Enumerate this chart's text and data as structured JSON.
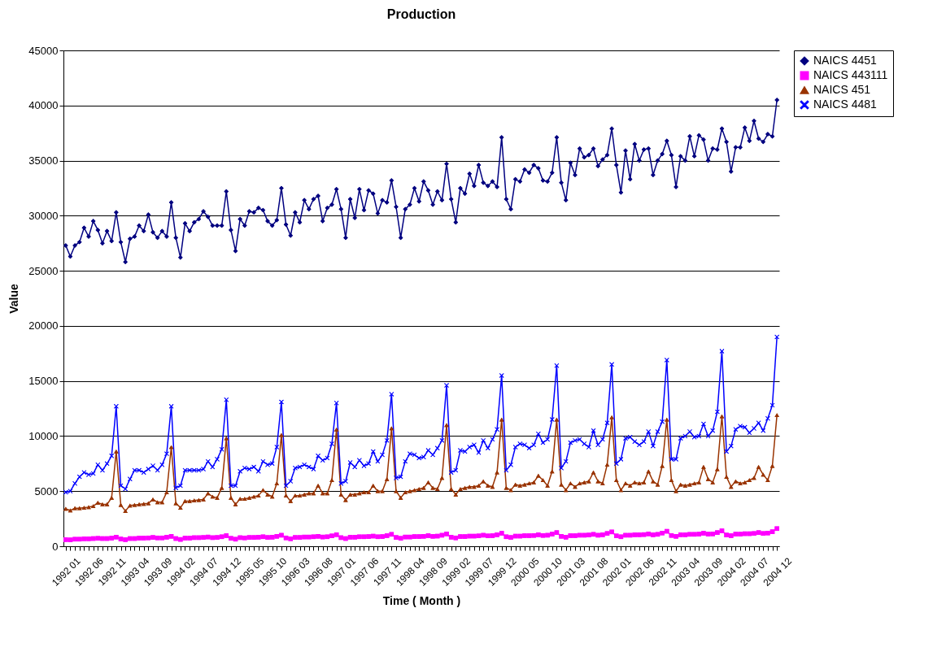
{
  "chart_data": {
    "type": "line",
    "title": "Production",
    "xlabel": "Time ( Month )",
    "ylabel": "Value",
    "categories": [
      "1992 01",
      null,
      null,
      null,
      null,
      "1992 06",
      null,
      null,
      null,
      null,
      "1992 11",
      null,
      null,
      null,
      null,
      "1993 04",
      null,
      null,
      null,
      null,
      "1993 09",
      null,
      null,
      null,
      null,
      "1994 02",
      null,
      null,
      null,
      null,
      "1994 07",
      null,
      null,
      null,
      null,
      "1994 12",
      null,
      null,
      null,
      null,
      "1995 05",
      null,
      null,
      null,
      null,
      "1995 10",
      null,
      null,
      null,
      null,
      "1996 03",
      null,
      null,
      null,
      null,
      "1996 08",
      null,
      null,
      null,
      null,
      "1997 01",
      null,
      null,
      null,
      null,
      "1997 06",
      null,
      null,
      null,
      null,
      "1997 11",
      null,
      null,
      null,
      null,
      "1998 04",
      null,
      null,
      null,
      null,
      "1998 09",
      null,
      null,
      null,
      null,
      "1999 02",
      null,
      null,
      null,
      null,
      "1999 07",
      null,
      null,
      null,
      null,
      "1999 12",
      null,
      null,
      null,
      null,
      "2000 05",
      null,
      null,
      null,
      null,
      "2000 10",
      null,
      null,
      null,
      null,
      "2001 03",
      null,
      null,
      null,
      null,
      "2001 08",
      null,
      null,
      null,
      null,
      "2002 01",
      null,
      null,
      null,
      null,
      "2002 06",
      null,
      null,
      null,
      null,
      "2002 11",
      null,
      null,
      null,
      null,
      "2003 04",
      null,
      null,
      null,
      null,
      "2003 09",
      null,
      null,
      null,
      null,
      "2004 02",
      null,
      null,
      null,
      null,
      "2004 07",
      null,
      null,
      null,
      null,
      "2004 12"
    ],
    "series": [
      {
        "name": "NAICS 4451",
        "color": "#000080",
        "marker": "diamond",
        "values": [
          27300,
          26300,
          27300,
          27600,
          28900,
          28100,
          29500,
          28700,
          27500,
          28600,
          27700,
          30300,
          27600,
          25800,
          27900,
          28100,
          29100,
          28600,
          30100,
          28500,
          28000,
          28600,
          28100,
          31200,
          28000,
          26200,
          29300,
          28600,
          29400,
          29700,
          30400,
          29900,
          29100,
          29100,
          29100,
          32200,
          28700,
          26800,
          29700,
          29100,
          30400,
          30300,
          30700,
          30500,
          29500,
          29100,
          29600,
          32500,
          29200,
          28200,
          30300,
          29400,
          31400,
          30600,
          31500,
          31800,
          29500,
          30700,
          31000,
          32400,
          30600,
          28000,
          31500,
          29800,
          32400,
          30500,
          32300,
          32000,
          30200,
          31400,
          31200,
          33200,
          30800,
          28000,
          30600,
          31000,
          32500,
          31300,
          33100,
          32300,
          31000,
          32200,
          31400,
          34700,
          31500,
          29400,
          32500,
          32000,
          33800,
          32700,
          34600,
          33000,
          32700,
          33100,
          32600,
          37100,
          31500,
          30600,
          33300,
          33100,
          34200,
          33900,
          34600,
          34300,
          33200,
          33100,
          33900,
          37100,
          33000,
          31400,
          34800,
          33700,
          36100,
          35300,
          35500,
          36100,
          34500,
          35100,
          35500,
          37900,
          34600,
          32100,
          35900,
          33300,
          36500,
          35000,
          36000,
          36100,
          33700,
          35000,
          35600,
          36800,
          35500,
          32600,
          35400,
          35000,
          37200,
          35400,
          37300,
          36900,
          35000,
          36100,
          36000,
          37900,
          36700,
          34000,
          36200,
          36200,
          38000,
          36800,
          38600,
          37000,
          36700,
          37400,
          37200,
          40500
        ]
      },
      {
        "name": "NAICS 443111",
        "color": "#ff00ff",
        "marker": "square",
        "values": [
          600,
          580,
          640,
          640,
          680,
          680,
          700,
          720,
          700,
          700,
          740,
          830,
          660,
          600,
          700,
          700,
          740,
          740,
          760,
          800,
          760,
          760,
          820,
          900,
          700,
          620,
          740,
          740,
          780,
          780,
          800,
          840,
          780,
          800,
          860,
          960,
          720,
          640,
          780,
          760,
          800,
          800,
          820,
          860,
          800,
          820,
          900,
          1000,
          760,
          680,
          800,
          800,
          840,
          840,
          860,
          900,
          840,
          860,
          940,
          1050,
          780,
          700,
          820,
          820,
          860,
          860,
          880,
          920,
          860,
          880,
          960,
          1080,
          800,
          720,
          840,
          840,
          880,
          880,
          900,
          960,
          900,
          920,
          1000,
          1120,
          820,
          760,
          880,
          880,
          920,
          920,
          940,
          1000,
          940,
          960,
          1040,
          1180,
          860,
          800,
          920,
          920,
          960,
          960,
          980,
          1040,
          980,
          1000,
          1100,
          1240,
          900,
          820,
          960,
          960,
          1000,
          1000,
          1020,
          1080,
          1000,
          1040,
          1160,
          1300,
          940,
          860,
          1000,
          1000,
          1040,
          1040,
          1060,
          1120,
          1040,
          1080,
          1200,
          1360,
          980,
          900,
          1040,
          1040,
          1080,
          1080,
          1100,
          1180,
          1100,
          1120,
          1240,
          1400,
          1020,
          960,
          1100,
          1100,
          1140,
          1140,
          1160,
          1240,
          1160,
          1200,
          1320,
          1600
        ]
      },
      {
        "name": "NAICS 451",
        "color": "#993300",
        "marker": "triangle",
        "values": [
          3400,
          3250,
          3450,
          3450,
          3500,
          3550,
          3650,
          3950,
          3800,
          3800,
          4400,
          8600,
          3750,
          3200,
          3700,
          3750,
          3800,
          3850,
          3900,
          4250,
          4000,
          4000,
          4900,
          9000,
          3900,
          3500,
          4100,
          4100,
          4150,
          4200,
          4250,
          4800,
          4500,
          4400,
          5300,
          9800,
          4400,
          3800,
          4300,
          4300,
          4400,
          4500,
          4600,
          5100,
          4700,
          4500,
          5700,
          10100,
          4600,
          4100,
          4600,
          4600,
          4700,
          4800,
          4800,
          5500,
          4800,
          4800,
          6000,
          10600,
          4700,
          4200,
          4700,
          4700,
          4800,
          4900,
          4900,
          5500,
          5000,
          5000,
          6100,
          10700,
          5000,
          4400,
          4900,
          5000,
          5100,
          5200,
          5300,
          5800,
          5300,
          5200,
          6200,
          11000,
          5200,
          4700,
          5200,
          5300,
          5400,
          5400,
          5500,
          5900,
          5500,
          5400,
          6700,
          11500,
          5300,
          5100,
          5600,
          5500,
          5600,
          5700,
          5800,
          6400,
          6000,
          5500,
          6800,
          11500,
          5600,
          5100,
          5700,
          5400,
          5700,
          5800,
          5900,
          6700,
          5900,
          5700,
          7400,
          11700,
          6000,
          5100,
          5700,
          5500,
          5800,
          5700,
          5800,
          6800,
          5900,
          5600,
          7300,
          11500,
          6000,
          5000,
          5600,
          5500,
          5600,
          5700,
          5800,
          7200,
          6100,
          5800,
          7000,
          11800,
          6300,
          5400,
          5900,
          5700,
          5800,
          6000,
          6200,
          7200,
          6500,
          6000,
          7300,
          11900
        ]
      },
      {
        "name": "NAICS 4481",
        "color": "#0000ff",
        "marker": "cross",
        "values": [
          4900,
          5000,
          5700,
          6300,
          6700,
          6500,
          6600,
          7400,
          6900,
          7500,
          8200,
          12700,
          5500,
          5200,
          6100,
          6900,
          6900,
          6700,
          7000,
          7300,
          6900,
          7400,
          8400,
          12700,
          5300,
          5500,
          6900,
          6900,
          6900,
          6900,
          7000,
          7700,
          7200,
          7900,
          8800,
          13300,
          5500,
          5500,
          6800,
          7100,
          7000,
          7200,
          6800,
          7700,
          7400,
          7500,
          9000,
          13100,
          5500,
          5900,
          7100,
          7200,
          7400,
          7200,
          7000,
          8200,
          7800,
          8000,
          9300,
          13000,
          5700,
          5900,
          7600,
          7200,
          7800,
          7300,
          7500,
          8600,
          7700,
          8300,
          9600,
          13800,
          6200,
          6300,
          7700,
          8400,
          8300,
          8000,
          8100,
          8700,
          8300,
          8900,
          9600,
          14600,
          6700,
          6900,
          8700,
          8600,
          9000,
          9200,
          8500,
          9600,
          8900,
          9700,
          10600,
          15500,
          6900,
          7400,
          9000,
          9300,
          9200,
          8900,
          9200,
          10200,
          9400,
          9700,
          11500,
          16400,
          7100,
          7700,
          9400,
          9600,
          9700,
          9300,
          9000,
          10500,
          9200,
          9700,
          11200,
          16500,
          7500,
          7900,
          9800,
          9900,
          9500,
          9200,
          9500,
          10400,
          9100,
          10400,
          11300,
          16900,
          7900,
          7900,
          9800,
          10000,
          10400,
          9900,
          10000,
          11100,
          10000,
          10500,
          12200,
          17700,
          8600,
          9100,
          10600,
          10900,
          10800,
          10300,
          10700,
          11200,
          10500,
          11600,
          12800,
          19000
        ]
      }
    ],
    "ylim": [
      0,
      45000
    ],
    "yticks": [
      0,
      5000,
      10000,
      15000,
      20000,
      25000,
      30000,
      35000,
      40000,
      45000
    ],
    "grid": "y",
    "legend": "right",
    "line_style": "solid"
  }
}
